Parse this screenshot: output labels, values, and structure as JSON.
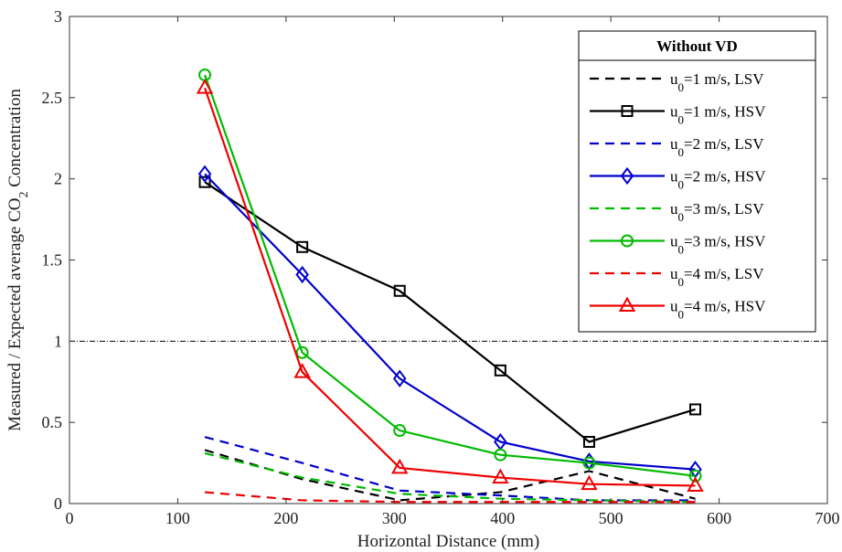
{
  "chart_data": {
    "type": "line",
    "xlabel": "Horizontal Distance (mm)",
    "ylabel_main": "Measured / Expected average CO",
    "ylabel_sub": "2",
    "ylabel_tail": " Concentration",
    "xlim": [
      0,
      700
    ],
    "ylim": [
      0,
      3
    ],
    "xticks": [
      0,
      100,
      200,
      300,
      400,
      500,
      600,
      700
    ],
    "yticks": [
      0,
      0.5,
      1,
      1.5,
      2,
      2.5,
      3
    ],
    "xtick_labels": [
      "0",
      "100",
      "200",
      "300",
      "400",
      "500",
      "600",
      "700"
    ],
    "ytick_labels": [
      "0",
      "0.5",
      "1",
      "1.5",
      "2",
      "2.5",
      "3"
    ],
    "reference_line": {
      "y": 1,
      "style": "dash-dot",
      "color": "#000000"
    },
    "legend": {
      "title": "Without VD",
      "position": "top-right"
    },
    "x": [
      125,
      215,
      305,
      398,
      480,
      578
    ],
    "series": [
      {
        "name_main": "u",
        "name_sub": "0",
        "name_tail": "=1 m/s, LSV",
        "color": "#000000",
        "style": "dashed",
        "marker": "none",
        "values": [
          0.33,
          0.15,
          0.02,
          0.07,
          0.2,
          0.03
        ]
      },
      {
        "name_main": "u",
        "name_sub": "0",
        "name_tail": "=1 m/s, HSV",
        "color": "#000000",
        "style": "solid",
        "marker": "square",
        "values": [
          1.98,
          1.58,
          1.31,
          0.82,
          0.38,
          0.58
        ]
      },
      {
        "name_main": "u",
        "name_sub": "0",
        "name_tail": "=2 m/s, LSV",
        "color": "#0000cc",
        "style": "dashed",
        "marker": "none",
        "values": [
          0.41,
          0.25,
          0.08,
          0.05,
          0.02,
          0.02
        ]
      },
      {
        "name_main": "u",
        "name_sub": "0",
        "name_tail": "=2 m/s, HSV",
        "color": "#0000cc",
        "style": "solid",
        "marker": "diamond",
        "values": [
          2.03,
          1.41,
          0.77,
          0.38,
          0.26,
          0.21
        ]
      },
      {
        "name_main": "u",
        "name_sub": "0",
        "name_tail": "=3 m/s, LSV",
        "color": "#00bb00",
        "style": "dashed",
        "marker": "none",
        "values": [
          0.31,
          0.16,
          0.06,
          0.03,
          0.02,
          0.01
        ]
      },
      {
        "name_main": "u",
        "name_sub": "0",
        "name_tail": "=3 m/s, HSV",
        "color": "#00bb00",
        "style": "solid",
        "marker": "circle",
        "values": [
          2.64,
          0.93,
          0.45,
          0.3,
          0.25,
          0.17
        ]
      },
      {
        "name_main": "u",
        "name_sub": "0",
        "name_tail": "=4 m/s, LSV",
        "color": "#ee0000",
        "style": "dashed",
        "marker": "none",
        "values": [
          0.07,
          0.02,
          0.01,
          0.01,
          0.01,
          0.01
        ]
      },
      {
        "name_main": "u",
        "name_sub": "0",
        "name_tail": "=4 m/s, HSV",
        "color": "#ee0000",
        "style": "solid",
        "marker": "triangle",
        "values": [
          2.56,
          0.81,
          0.22,
          0.16,
          0.12,
          0.11
        ]
      }
    ]
  }
}
